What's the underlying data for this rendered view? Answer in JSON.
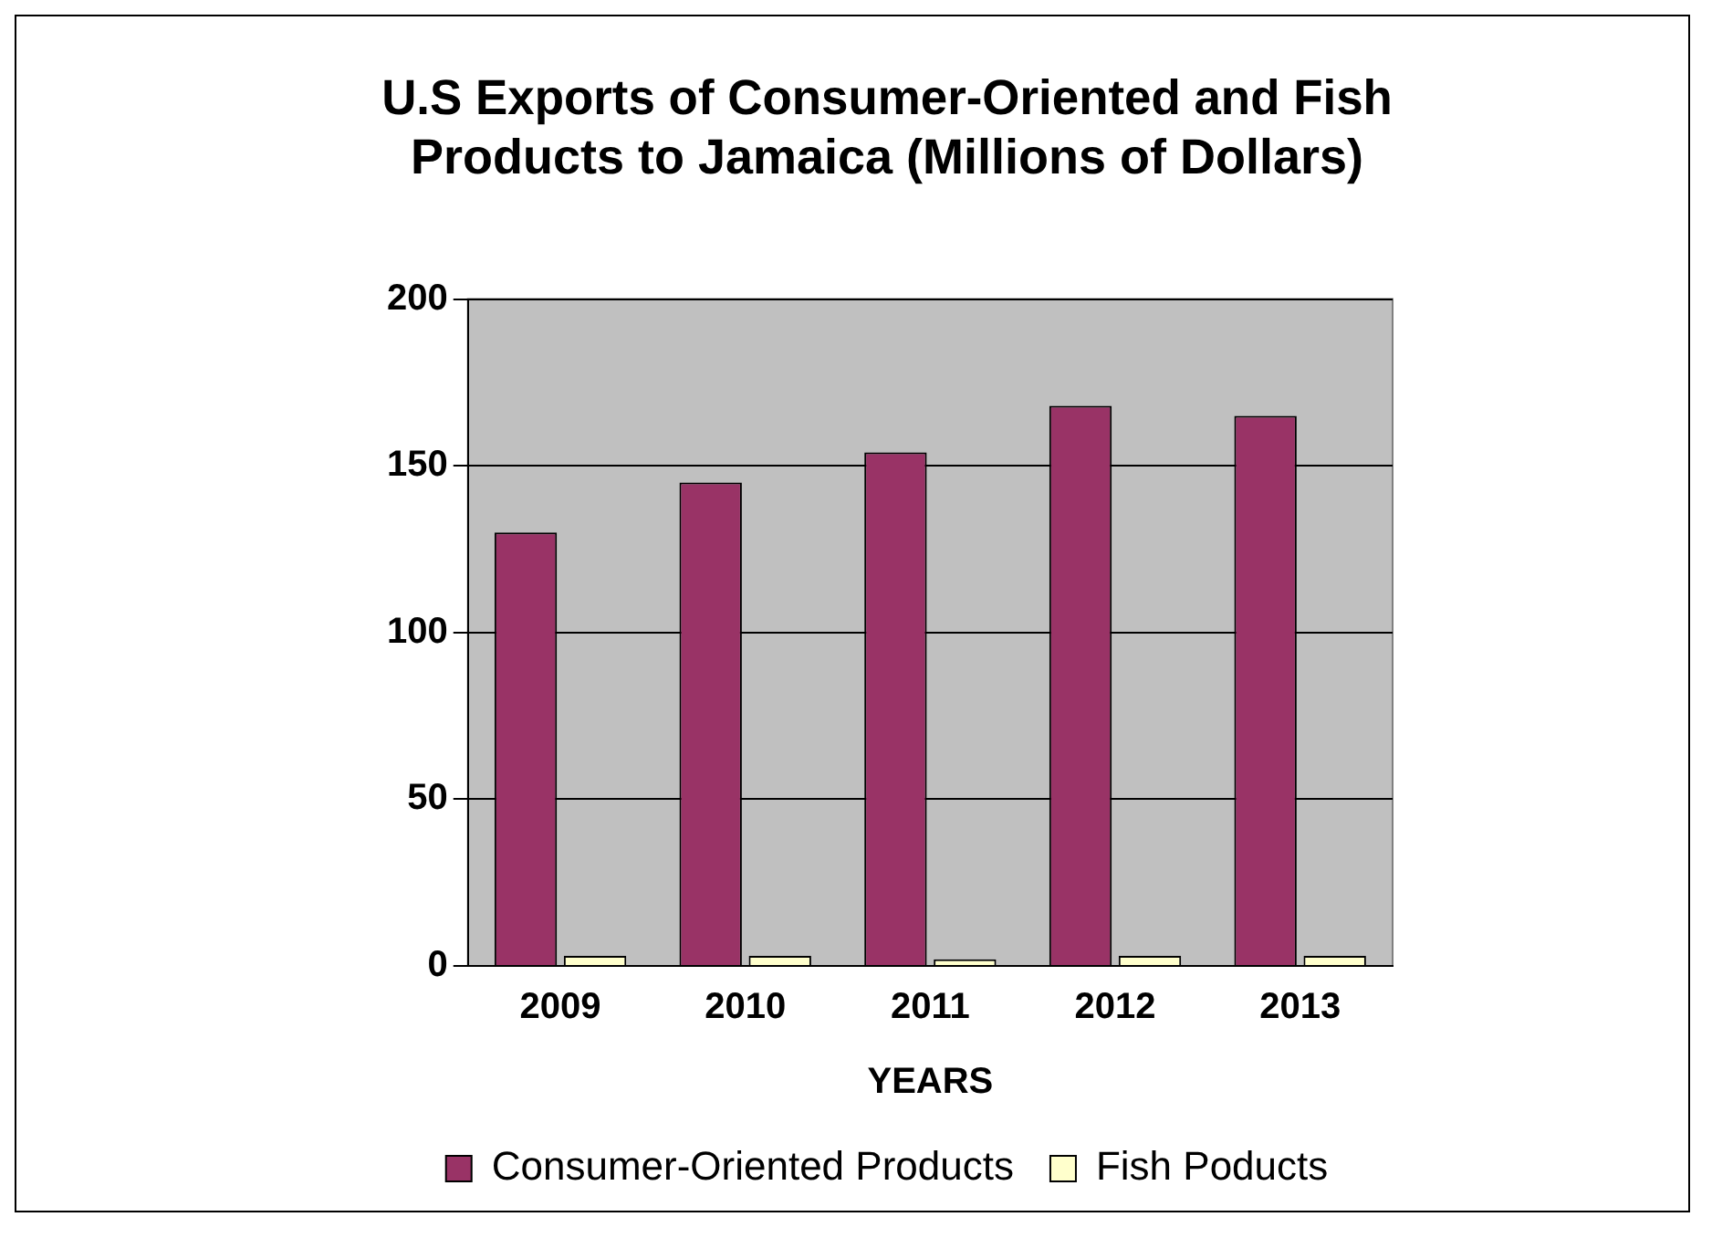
{
  "chart_data": {
    "type": "bar",
    "title": "U.S Exports of Consumer-Oriented and Fish Products to Jamaica (Millions of Dollars)",
    "xlabel": "YEARS",
    "categories": [
      "2009",
      "2010",
      "2011",
      "2012",
      "2013"
    ],
    "series": [
      {
        "name": "Consumer-Oriented Products",
        "color": "#993366",
        "values": [
          130,
          145,
          154,
          168,
          165
        ]
      },
      {
        "name": "Fish Poducts",
        "color": "#ffffcc",
        "values": [
          3,
          3,
          2,
          3,
          3
        ]
      }
    ],
    "ylim": [
      0,
      200
    ],
    "yticks": [
      0,
      50,
      100,
      150,
      200
    ],
    "grid": "y",
    "legend": "bottom"
  }
}
